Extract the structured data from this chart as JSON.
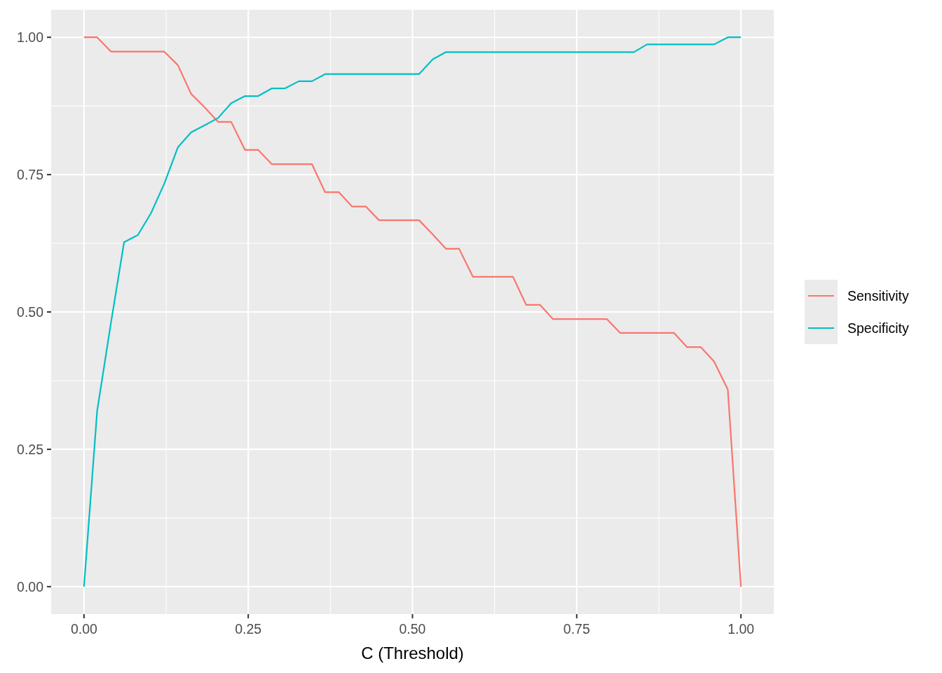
{
  "chart_data": {
    "type": "line",
    "xlabel": "C (Threshold)",
    "x": [
      0,
      0.02,
      0.041,
      0.061,
      0.082,
      0.102,
      0.122,
      0.143,
      0.163,
      0.184,
      0.204,
      0.224,
      0.245,
      0.265,
      0.286,
      0.306,
      0.327,
      0.347,
      0.367,
      0.388,
      0.408,
      0.429,
      0.449,
      0.469,
      0.49,
      0.51,
      0.531,
      0.551,
      0.571,
      0.592,
      0.612,
      0.633,
      0.653,
      0.673,
      0.694,
      0.714,
      0.735,
      0.755,
      0.776,
      0.796,
      0.816,
      0.837,
      0.857,
      0.878,
      0.898,
      0.918,
      0.939,
      0.959,
      0.98,
      1
    ],
    "series": [
      {
        "name": "Sensitivity",
        "color": "#f8766d",
        "values": [
          1,
          1,
          0.974,
          0.974,
          0.974,
          0.974,
          0.974,
          0.949,
          0.897,
          0.872,
          0.846,
          0.846,
          0.795,
          0.795,
          0.769,
          0.769,
          0.769,
          0.769,
          0.718,
          0.718,
          0.692,
          0.692,
          0.667,
          0.667,
          0.667,
          0.667,
          0.641,
          0.615,
          0.615,
          0.564,
          0.564,
          0.564,
          0.564,
          0.513,
          0.513,
          0.487,
          0.487,
          0.487,
          0.487,
          0.487,
          0.462,
          0.462,
          0.462,
          0.462,
          0.462,
          0.436,
          0.436,
          0.41,
          0.359,
          0
        ]
      },
      {
        "name": "Specificity",
        "color": "#00bfc4",
        "values": [
          0,
          0.32,
          0.48,
          0.627,
          0.64,
          0.68,
          0.733,
          0.8,
          0.827,
          0.84,
          0.853,
          0.88,
          0.893,
          0.893,
          0.907,
          0.907,
          0.92,
          0.92,
          0.933,
          0.933,
          0.933,
          0.933,
          0.933,
          0.933,
          0.933,
          0.933,
          0.96,
          0.973,
          0.973,
          0.973,
          0.973,
          0.973,
          0.973,
          0.973,
          0.973,
          0.973,
          0.973,
          0.973,
          0.973,
          0.973,
          0.973,
          0.973,
          0.987,
          0.987,
          0.987,
          0.987,
          0.987,
          0.987,
          1,
          1
        ]
      }
    ],
    "xlim": [
      -0.05,
      1.05
    ],
    "ylim": [
      -0.05,
      1.05
    ],
    "xticks": [
      {
        "value": 0,
        "label": "0.00"
      },
      {
        "value": 0.25,
        "label": "0.25"
      },
      {
        "value": 0.5,
        "label": "0.50"
      },
      {
        "value": 0.75,
        "label": "0.75"
      },
      {
        "value": 1,
        "label": "1.00"
      }
    ],
    "yticks": [
      {
        "value": 0,
        "label": "0.00"
      },
      {
        "value": 0.25,
        "label": "0.25"
      },
      {
        "value": 0.5,
        "label": "0.50"
      },
      {
        "value": 0.75,
        "label": "0.75"
      },
      {
        "value": 1,
        "label": "1.00"
      }
    ],
    "grid": true,
    "legend": "right",
    "line_style": "solid"
  }
}
